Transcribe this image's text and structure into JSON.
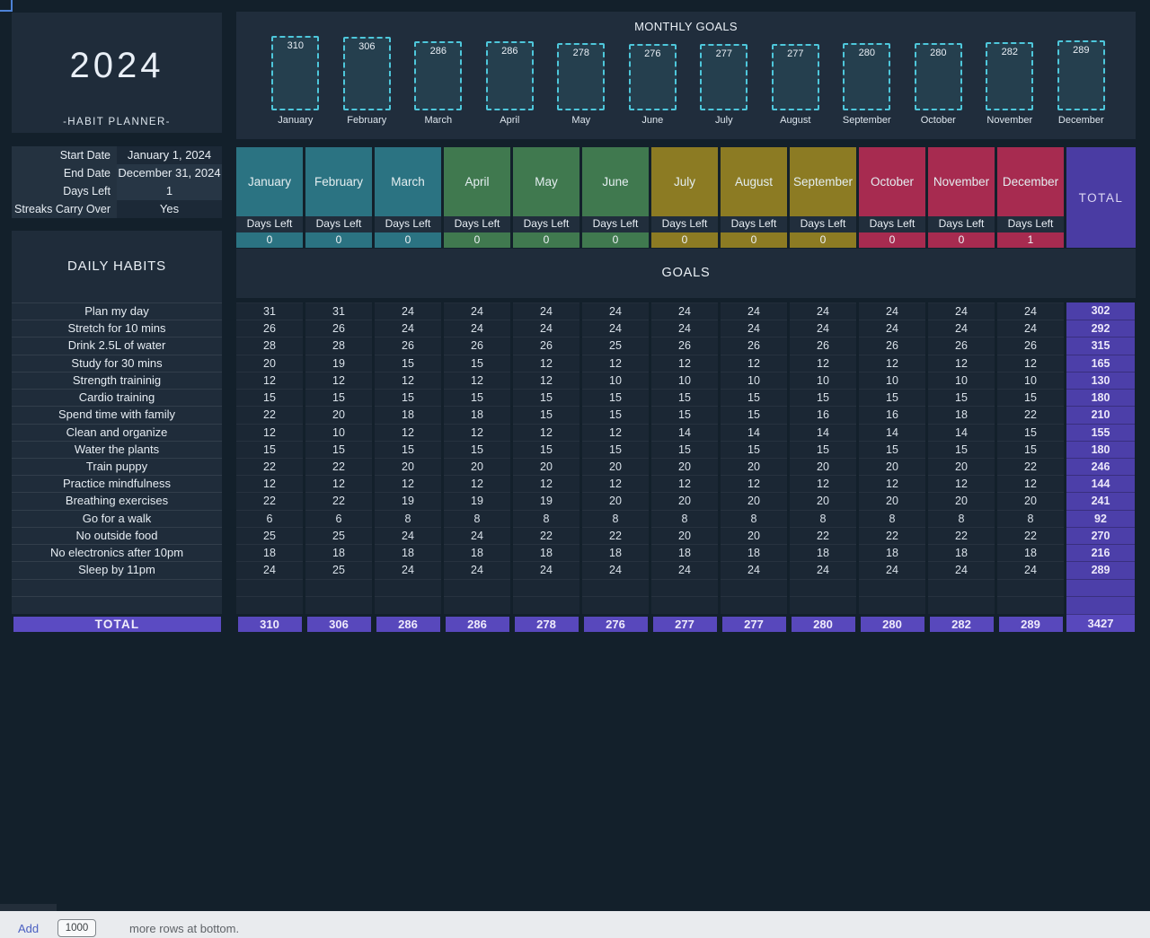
{
  "title_panel": {
    "year": "2024",
    "subtitle": "-HABIT PLANNER-"
  },
  "info": {
    "rows": [
      {
        "label": "Start Date",
        "value": "January 1, 2024",
        "shade": "dark"
      },
      {
        "label": "End Date",
        "value": "December 31, 2024",
        "shade": "light"
      },
      {
        "label": "Days Left",
        "value": "1",
        "shade": "light"
      },
      {
        "label": "Streaks Carry Over",
        "value": "Yes",
        "shade": "dark"
      }
    ]
  },
  "habits": {
    "header": "DAILY HABITS",
    "items": [
      "Plan my day",
      "Stretch for 10 mins",
      "Drink 2.5L of water",
      "Study for 30 mins",
      "Strength traininig",
      "Cardio training",
      "Spend time with family",
      "Clean and organize",
      "Water the plants",
      "Train puppy",
      "Practice mindfulness",
      "Breathing exercises",
      "Go for a walk",
      "No outside food",
      "No electronics after 10pm",
      "Sleep by 11pm"
    ],
    "empty_rows": 2,
    "total_label": "TOTAL"
  },
  "chart_data": {
    "type": "bar",
    "title": "MONTHLY GOALS",
    "categories": [
      "January",
      "February",
      "March",
      "April",
      "May",
      "June",
      "July",
      "August",
      "September",
      "October",
      "November",
      "December"
    ],
    "values": [
      310,
      306,
      286,
      286,
      278,
      276,
      277,
      277,
      280,
      280,
      282,
      289
    ],
    "ylim": [
      0,
      330
    ],
    "bar_style": "dashed-outline",
    "bar_border_color": "#4ec7db",
    "bar_fill_color": "#253f4e"
  },
  "month_table": {
    "days_left_label": "Days Left",
    "total_label": "TOTAL",
    "columns": [
      {
        "name": "January",
        "days_left": "0",
        "color": "#2b7382"
      },
      {
        "name": "February",
        "days_left": "0",
        "color": "#2b7382"
      },
      {
        "name": "March",
        "days_left": "0",
        "color": "#2b7382"
      },
      {
        "name": "April",
        "days_left": "0",
        "color": "#40794f"
      },
      {
        "name": "May",
        "days_left": "0",
        "color": "#40794f"
      },
      {
        "name": "June",
        "days_left": "0",
        "color": "#40794f"
      },
      {
        "name": "July",
        "days_left": "0",
        "color": "#8c7b23"
      },
      {
        "name": "August",
        "days_left": "0",
        "color": "#8c7b23"
      },
      {
        "name": "September",
        "days_left": "0",
        "color": "#8c7b23"
      },
      {
        "name": "October",
        "days_left": "0",
        "color": "#a72b50"
      },
      {
        "name": "November",
        "days_left": "0",
        "color": "#a72b50"
      },
      {
        "name": "December",
        "days_left": "1",
        "color": "#a72b50"
      }
    ]
  },
  "goals": {
    "title": "GOALS",
    "rows": [
      {
        "habit": "Plan my day",
        "values": [
          31,
          31,
          24,
          24,
          24,
          24,
          24,
          24,
          24,
          24,
          24,
          24
        ],
        "total": 302
      },
      {
        "habit": "Stretch for 10 mins",
        "values": [
          26,
          26,
          24,
          24,
          24,
          24,
          24,
          24,
          24,
          24,
          24,
          24
        ],
        "total": 292
      },
      {
        "habit": "Drink 2.5L of water",
        "values": [
          28,
          28,
          26,
          26,
          26,
          25,
          26,
          26,
          26,
          26,
          26,
          26
        ],
        "total": 315
      },
      {
        "habit": "Study for 30 mins",
        "values": [
          20,
          19,
          15,
          15,
          12,
          12,
          12,
          12,
          12,
          12,
          12,
          12
        ],
        "total": 165
      },
      {
        "habit": "Strength traininig",
        "values": [
          12,
          12,
          12,
          12,
          12,
          10,
          10,
          10,
          10,
          10,
          10,
          10
        ],
        "total": 130
      },
      {
        "habit": "Cardio training",
        "values": [
          15,
          15,
          15,
          15,
          15,
          15,
          15,
          15,
          15,
          15,
          15,
          15
        ],
        "total": 180
      },
      {
        "habit": "Spend time with family",
        "values": [
          22,
          20,
          18,
          18,
          15,
          15,
          15,
          15,
          16,
          16,
          18,
          22
        ],
        "total": 210
      },
      {
        "habit": "Clean and organize",
        "values": [
          12,
          10,
          12,
          12,
          12,
          12,
          14,
          14,
          14,
          14,
          14,
          15
        ],
        "total": 155
      },
      {
        "habit": "Water the plants",
        "values": [
          15,
          15,
          15,
          15,
          15,
          15,
          15,
          15,
          15,
          15,
          15,
          15
        ],
        "total": 180
      },
      {
        "habit": "Train puppy",
        "values": [
          22,
          22,
          20,
          20,
          20,
          20,
          20,
          20,
          20,
          20,
          20,
          22
        ],
        "total": 246
      },
      {
        "habit": "Practice mindfulness",
        "values": [
          12,
          12,
          12,
          12,
          12,
          12,
          12,
          12,
          12,
          12,
          12,
          12
        ],
        "total": 144
      },
      {
        "habit": "Breathing exercises",
        "values": [
          22,
          22,
          19,
          19,
          19,
          20,
          20,
          20,
          20,
          20,
          20,
          20
        ],
        "total": 241
      },
      {
        "habit": "Go for a walk",
        "values": [
          6,
          6,
          8,
          8,
          8,
          8,
          8,
          8,
          8,
          8,
          8,
          8
        ],
        "total": 92
      },
      {
        "habit": "No outside food",
        "values": [
          25,
          25,
          24,
          24,
          22,
          22,
          20,
          20,
          22,
          22,
          22,
          22
        ],
        "total": 270
      },
      {
        "habit": "No electronics after 10pm",
        "values": [
          18,
          18,
          18,
          18,
          18,
          18,
          18,
          18,
          18,
          18,
          18,
          18
        ],
        "total": 216
      },
      {
        "habit": "Sleep by 11pm",
        "values": [
          24,
          25,
          24,
          24,
          24,
          24,
          24,
          24,
          24,
          24,
          24,
          24
        ],
        "total": 289
      }
    ],
    "column_totals": [
      310,
      306,
      286,
      286,
      278,
      276,
      277,
      277,
      280,
      280,
      282,
      289
    ],
    "grand_total": 3427
  },
  "bottom_bar": {
    "add_label": "Add",
    "rows_value": "1000",
    "suffix": "more rows at bottom."
  },
  "colors": {
    "page_bg": "#141e2a",
    "panel_bg": "#1f2c3a",
    "cell_bg": "#1b2734",
    "teal": "#2b7382",
    "green": "#40794f",
    "olive": "#8c7b23",
    "crimson": "#a72b50",
    "total_header_purple": "#4a3ca3",
    "total_column_purple": "#4c3fa9",
    "total_row_purple": "#5848bc",
    "selection_blue": "#4d82d6",
    "bar_border": "#4ec7db"
  }
}
